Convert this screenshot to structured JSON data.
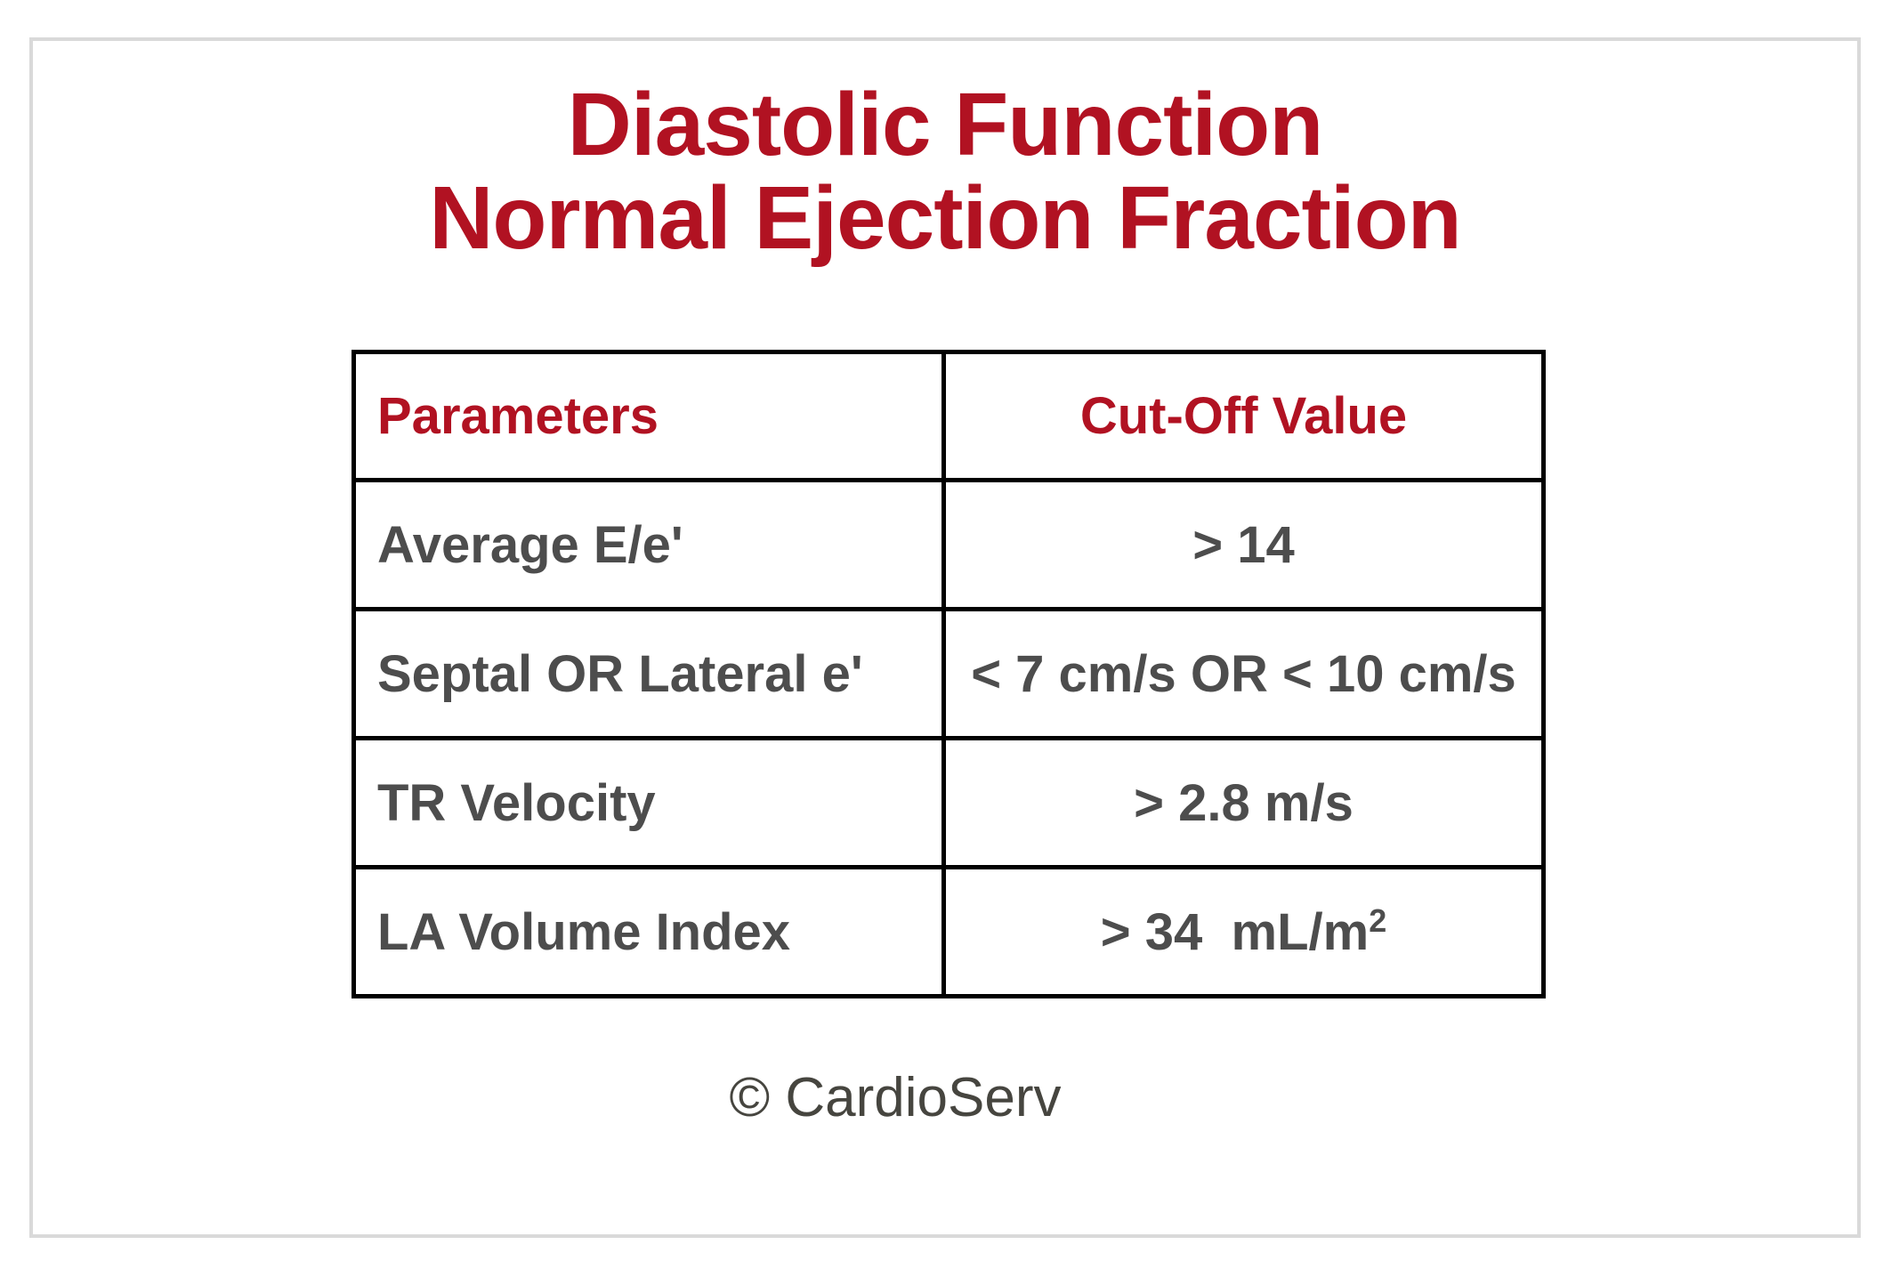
{
  "title": {
    "line1": "Diastolic Function",
    "line2": "Normal Ejection Fraction"
  },
  "table": {
    "headers": [
      "Parameters",
      "Cut-Off Value"
    ],
    "rows": [
      {
        "param": "Average E/e'",
        "value": "> 14",
        "sup": ""
      },
      {
        "param": "Septal OR Lateral e'",
        "value": "< 7 cm/s OR < 10 cm/s",
        "sup": ""
      },
      {
        "param": "TR Velocity",
        "value": "> 2.8 m/s",
        "sup": ""
      },
      {
        "param": "LA Volume Index",
        "value": "> 34  mL/m",
        "sup": "2"
      }
    ]
  },
  "footer": {
    "text": "© CardioServ"
  },
  "colors": {
    "accent_red": "#b11222",
    "body_text": "#4d4d4d",
    "footer_text": "#46453f",
    "table_border": "#000000",
    "card_border": "#d9d9d9"
  },
  "chart_data": {
    "type": "table",
    "title": "Diastolic Function Normal Ejection Fraction",
    "columns": [
      "Parameters",
      "Cut-Off Value"
    ],
    "rows": [
      [
        "Average E/e'",
        "> 14"
      ],
      [
        "Septal OR Lateral e'",
        "< 7 cm/s OR < 10 cm/s"
      ],
      [
        "TR Velocity",
        "> 2.8 m/s"
      ],
      [
        "LA Volume Index",
        "> 34 mL/m²"
      ]
    ]
  }
}
